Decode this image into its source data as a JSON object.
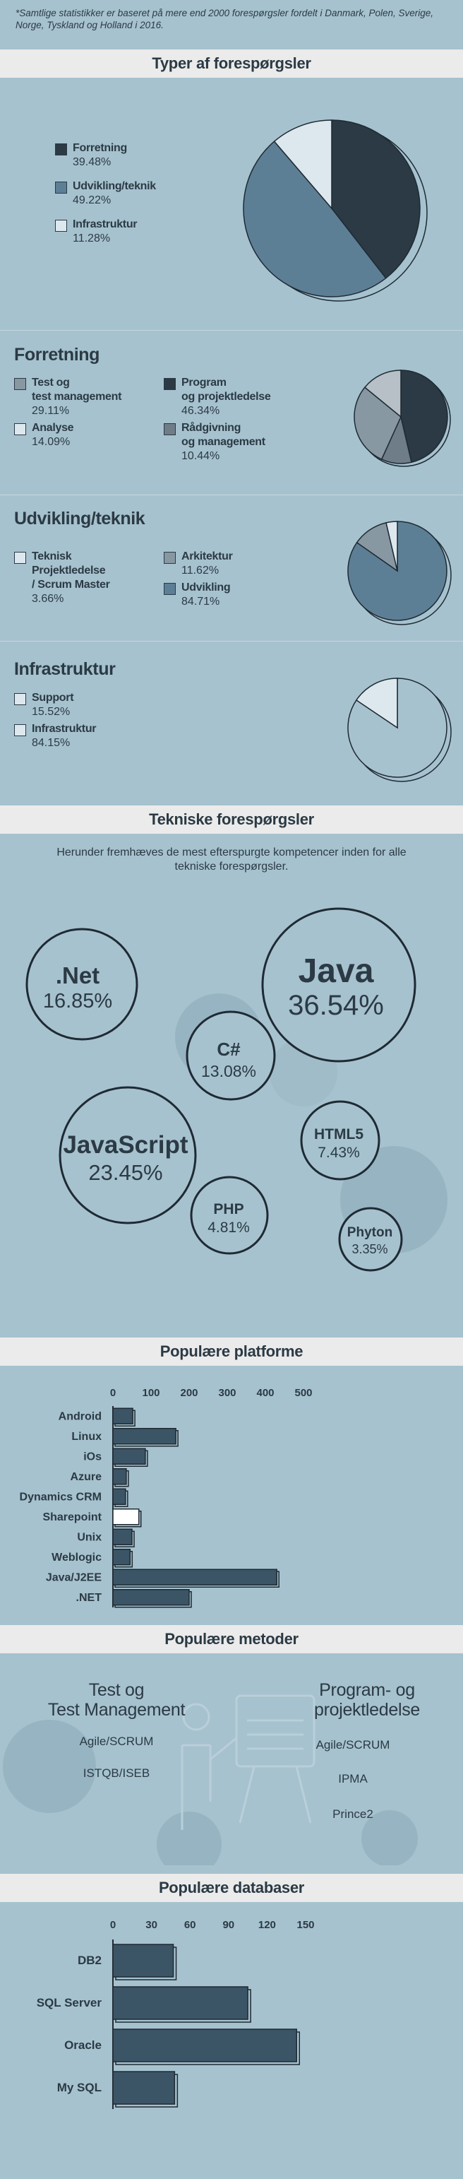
{
  "note": "*Samtlige statistikker er baseret på mere end 2000 forespørgsler fordelt i Danmark, Polen, Sverige, Norge, Tyskland og Holland i 2016.",
  "colors": {
    "background": "#a6c2ce",
    "band": "#ebebeb",
    "dark": "#2b3a44",
    "mid": "#5d7f95",
    "light": "#dde8ee",
    "grey1": "#8898a3",
    "grey2": "#6e7d87",
    "grey3": "#b7c0c6"
  },
  "sections": {
    "types": {
      "title": "Typer af forespørgsler",
      "legend": [
        {
          "label": "Forretning",
          "value": "39.48%",
          "color": "#2b3a44"
        },
        {
          "label": "Udvikling/teknik",
          "value": "49.22%",
          "color": "#5d7f95"
        },
        {
          "label": "Infrastruktur",
          "value": "11.28%",
          "color": "#dde8ee"
        }
      ]
    },
    "forretning": {
      "title": "Forretning",
      "legend": [
        {
          "label": "Test og\ntest management",
          "value": "29.11%",
          "color": "#8898a3"
        },
        {
          "label": "Analyse",
          "value": "14.09%",
          "color": "#dde8ee"
        },
        {
          "label": "Program\nog projektledelse",
          "value": "46.34%",
          "color": "#2b3a44"
        },
        {
          "label": "Rådgivning\nog management",
          "value": "10.44%",
          "color": "#6e7d87"
        }
      ]
    },
    "udvikling": {
      "title": "Udvikling/teknik",
      "legend": [
        {
          "label": "Teknisk\nProjektledelse\n/ Scrum Master",
          "value": "3.66%",
          "color": "#dde8ee"
        },
        {
          "label": "Arkitektur",
          "value": "11.62%",
          "color": "#8898a3"
        },
        {
          "label": "Udvikling",
          "value": "84.71%",
          "color": "#5d7f95"
        }
      ]
    },
    "infrastruktur": {
      "title": "Infrastruktur",
      "legend": [
        {
          "label": "Support",
          "value": "15.52%",
          "color": "#dde8ee"
        },
        {
          "label": "Infrastruktur",
          "value": "84.15%",
          "color": "#dde8ee"
        }
      ]
    },
    "tekniske": {
      "title": "Tekniske forespørgsler",
      "intro": "Herunder fremhæves de mest efterspurgte kompetencer inden for alle tekniske forespørgsler.",
      "bubbles": [
        {
          "name": ".Net",
          "value": "16.85%"
        },
        {
          "name": "Java",
          "value": "36.54%"
        },
        {
          "name": "C#",
          "value": "13.08%"
        },
        {
          "name": "JavaScript",
          "value": "23.45%"
        },
        {
          "name": "HTML5",
          "value": "7.43%"
        },
        {
          "name": "PHP",
          "value": "4.81%"
        },
        {
          "name": "Phyton",
          "value": "3.35%"
        }
      ]
    },
    "platforme": {
      "title": "Populære platforme"
    },
    "metoder": {
      "title": "Populære metoder",
      "left_head": "Test og\nTest Management",
      "left_items": [
        "Agile/SCRUM",
        "ISTQB/ISEB"
      ],
      "right_head": "Program- og\nprojektledelse",
      "right_items": [
        "Agile/SCRUM",
        "IPMA",
        "Prince2"
      ]
    },
    "databaser": {
      "title": "Populære databaser"
    }
  },
  "chart_data": [
    {
      "type": "pie",
      "title": "Typer af forespørgsler",
      "categories": [
        "Forretning",
        "Udvikling/teknik",
        "Infrastruktur"
      ],
      "values": [
        39.48,
        49.22,
        11.28
      ]
    },
    {
      "type": "pie",
      "title": "Forretning",
      "categories": [
        "Program og projektledelse",
        "Rådgivning og management",
        "Test og test management",
        "Analyse"
      ],
      "values": [
        46.34,
        10.44,
        29.11,
        14.09
      ]
    },
    {
      "type": "pie",
      "title": "Udvikling/teknik",
      "categories": [
        "Udvikling",
        "Arkitektur",
        "Teknisk Projektledelse / Scrum Master"
      ],
      "values": [
        84.71,
        11.62,
        3.66
      ]
    },
    {
      "type": "pie",
      "title": "Infrastruktur",
      "categories": [
        "Infrastruktur",
        "Support"
      ],
      "values": [
        84.15,
        15.52
      ]
    },
    {
      "type": "bar",
      "title": "Populære platforme",
      "orientation": "horizontal",
      "categories": [
        "Android",
        "Linux",
        "iOs",
        "Azure",
        "Dynamics CRM",
        "Sharepoint",
        "Unix",
        "Weblogic",
        "Java/J2EE",
        ".NET"
      ],
      "values": [
        52,
        165,
        85,
        35,
        33,
        68,
        50,
        45,
        430,
        200
      ],
      "highlight": "Sharepoint",
      "xlim": [
        0,
        500
      ],
      "xticks": [
        0,
        100,
        200,
        300,
        400,
        500
      ]
    },
    {
      "type": "bar",
      "title": "Populære databaser",
      "orientation": "horizontal",
      "categories": [
        "DB2",
        "SQL Server",
        "Oracle",
        "My SQL"
      ],
      "values": [
        47,
        105,
        143,
        48
      ],
      "xlim": [
        0,
        150
      ],
      "xticks": [
        0,
        30,
        60,
        90,
        120,
        150
      ]
    }
  ]
}
